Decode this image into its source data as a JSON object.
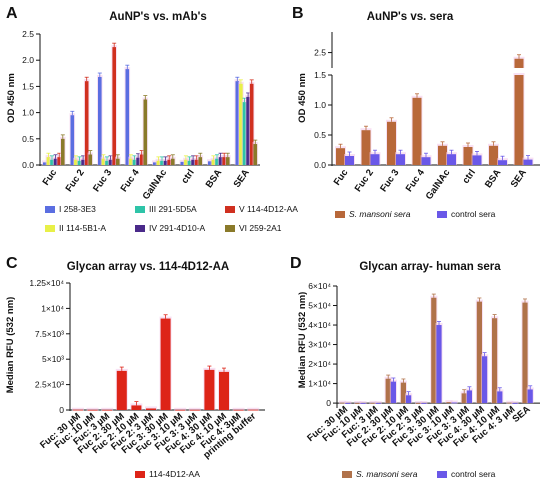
{
  "chart_data": [
    {
      "panel": "A",
      "type": "bar",
      "title": "AuNP's vs. mAb's",
      "ylabel": "OD 450 nm",
      "ylim": [
        0,
        2.5
      ],
      "yticks": [
        "0.0",
        "0.5",
        "1.0",
        "1.5",
        "2.0",
        "2.5"
      ],
      "categories": [
        "Fuc",
        "Fuc 2",
        "Fuc 3",
        "Fuc 4",
        "GalNAc",
        "ctrl",
        "BSA",
        "SEA"
      ],
      "legend_position": "bottom",
      "series": [
        {
          "name": "I 258-3E3",
          "color": "#5b6ee1",
          "values": [
            0.05,
            0.95,
            1.68,
            1.83,
            0.05,
            0.06,
            0.07,
            1.6
          ]
        },
        {
          "name": "II 114-5B1-A",
          "color": "#e8f048",
          "values": [
            0.15,
            0.1,
            0.12,
            0.12,
            0.08,
            0.1,
            0.1,
            1.55
          ]
        },
        {
          "name": "III 291-5D5A",
          "color": "#2ec4a8",
          "values": [
            0.1,
            0.08,
            0.08,
            0.1,
            0.08,
            0.08,
            0.12,
            1.2
          ]
        },
        {
          "name": "IV 291-4D10-A",
          "color": "#4a2a8a",
          "values": [
            0.12,
            0.1,
            0.1,
            0.14,
            0.08,
            0.1,
            0.15,
            1.3
          ]
        },
        {
          "name": "V 114-4D12-AA",
          "color": "#d03020",
          "values": [
            0.15,
            1.6,
            2.25,
            0.2,
            0.1,
            0.1,
            0.15,
            1.55
          ]
        },
        {
          "name": "VI 259-2A1",
          "color": "#8a7a2a",
          "values": [
            0.5,
            0.2,
            0.12,
            1.25,
            0.12,
            0.15,
            0.15,
            0.4
          ]
        }
      ]
    },
    {
      "panel": "B",
      "type": "bar",
      "title": "AuNP's vs. sera",
      "ylabel": "OD 450 nm",
      "ylim": [
        0,
        2.5
      ],
      "axis_break": [
        1.5,
        2.5
      ],
      "yticks": [
        "0.0",
        "0.5",
        "1.0",
        "1.5",
        "2.0",
        "2.5"
      ],
      "categories": [
        "Fuc",
        "Fuc 2",
        "Fuc 3",
        "Fuc 4",
        "GalNAc",
        "ctrl",
        "BSA",
        "SEA"
      ],
      "legend_position": "bottom",
      "series": [
        {
          "name": "S. mansoni sera",
          "color": "#b8683a",
          "values": [
            0.28,
            0.58,
            0.72,
            1.12,
            0.32,
            0.3,
            0.32,
            2.38
          ]
        },
        {
          "name": "control sera",
          "color": "#6a58e8",
          "values": [
            0.15,
            0.18,
            0.18,
            0.13,
            0.18,
            0.16,
            0.08,
            0.09
          ]
        }
      ]
    },
    {
      "panel": "C",
      "type": "bar",
      "title": "Glycan array vs. 114-4D12-AA",
      "ylabel": "Median RFU (532 nm)",
      "ylim": [
        0,
        12500
      ],
      "yticks": [
        "0",
        "2.5×10³",
        "5×10³",
        "7.5×10³",
        "1×10⁴",
        "1.25×10⁴"
      ],
      "categories": [
        "Fuc: 30 µM",
        "Fuc: 10 µM",
        "Fuc: 3 µM",
        "Fuc 2: 30 µM",
        "Fuc 2: 10 µM",
        "Fuc 2: 3 µM",
        "Fuc 3: 30 µM",
        "Fuc 3: 10 µM",
        "Fuc 3: 3 µM",
        "Fuc 4: 30 µM",
        "Fuc 4: 10 µM",
        "Fuc 4: 3µM",
        "printing buffer"
      ],
      "legend_position": "bottom",
      "series": [
        {
          "name": "114-4D12-AA",
          "color": "#dd2418",
          "values": [
            30,
            20,
            20,
            3850,
            450,
            150,
            9000,
            20,
            20,
            3950,
            3750,
            20,
            30
          ]
        }
      ]
    },
    {
      "panel": "D",
      "type": "bar",
      "title": "Glycan array- human sera",
      "ylabel": "Median RFU (532 nm)",
      "ylim": [
        -500,
        60000
      ],
      "yticks": [
        "0",
        "1×10⁴",
        "2×10⁴",
        "3×10⁴",
        "4×10⁴",
        "5×10⁴",
        "6×10⁴"
      ],
      "categories": [
        "Fuc: 30 µM",
        "Fuc: 10 µM",
        "Fuc: 3 µM",
        "Fuc 2: 30 µM",
        "Fuc 2: 10 µM",
        "Fuc 2: 3 µM",
        "Fuc 3: 30 µM",
        "Fuc 3: 10 µM",
        "Fuc 3: 3 µM",
        "Fuc 4: 30 µM",
        "Fuc 4: 10 µM",
        "Fuc 4: 3 µM",
        "SEA"
      ],
      "legend_position": "bottom",
      "series": [
        {
          "name": "S. mansoni sera",
          "color": "#b0724a",
          "values": [
            200,
            -300,
            100,
            12500,
            10500,
            -200,
            54000,
            500,
            5000,
            52000,
            43500,
            200,
            51500
          ]
        },
        {
          "name": "control sera",
          "color": "#6a58e8",
          "values": [
            -300,
            -400,
            -200,
            11000,
            4000,
            -300,
            40000,
            300,
            6500,
            24000,
            6000,
            -200,
            7000
          ]
        }
      ]
    }
  ]
}
